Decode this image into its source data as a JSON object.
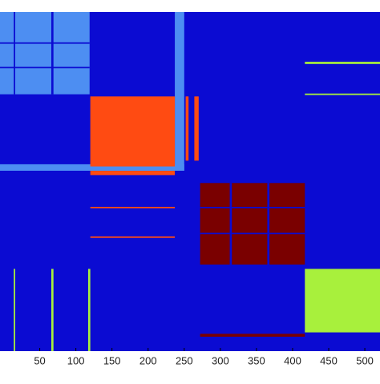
{
  "chart_data": {
    "type": "heatmap",
    "background": "#0b0bd2",
    "xlim": [
      -5,
      521
    ],
    "ylim": [
      0,
      470
    ],
    "xticks": [
      50,
      100,
      150,
      200,
      250,
      300,
      350,
      400,
      450,
      500
    ],
    "regions": [
      {
        "x": [
          -5,
          119
        ],
        "y": [
          0,
          114
        ],
        "color": "#4d8ef2"
      },
      {
        "x": [
          -5,
          250
        ],
        "y": [
          211,
          220
        ],
        "color": "#4d8ef2"
      },
      {
        "x": [
          237,
          250
        ],
        "y": [
          0,
          220
        ],
        "color": "#4d8ef2"
      },
      {
        "x": [
          120,
          237
        ],
        "y": [
          117,
          214
        ],
        "color": "#ff4b12"
      },
      {
        "x": [
          120,
          237
        ],
        "y": [
          220,
          226
        ],
        "color": "#ff4b12"
      },
      {
        "x": [
          252,
          256
        ],
        "y": [
          117,
          206
        ],
        "color": "#ff4b12"
      },
      {
        "x": [
          264,
          270
        ],
        "y": [
          117,
          206
        ],
        "color": "#ff4b12"
      },
      {
        "x": [
          120,
          237
        ],
        "y": [
          270,
          272
        ],
        "color": "#ff4b12"
      },
      {
        "x": [
          120,
          237
        ],
        "y": [
          311,
          313
        ],
        "color": "#ff4b12"
      },
      {
        "x": [
          272,
          417
        ],
        "y": [
          237,
          350
        ],
        "color": "#7a0000"
      },
      {
        "x": [
          272,
          417
        ],
        "y": [
          446,
          450
        ],
        "color": "#7a0000"
      },
      {
        "x": [
          313,
          316
        ],
        "y": [
          237,
          350
        ],
        "color": "#0b0bd2"
      },
      {
        "x": [
          365,
          368
        ],
        "y": [
          237,
          350
        ],
        "color": "#0b0bd2"
      },
      {
        "x": [
          272,
          417
        ],
        "y": [
          270,
          272
        ],
        "color": "#0b0bd2"
      },
      {
        "x": [
          272,
          417
        ],
        "y": [
          306,
          308
        ],
        "color": "#0b0bd2"
      },
      {
        "x": [
          417,
          521
        ],
        "y": [
          356,
          444
        ],
        "color": "#a8f03c"
      },
      {
        "x": [
          417,
          521
        ],
        "y": [
          69,
          72
        ],
        "color": "#a8f03c"
      },
      {
        "x": [
          417,
          521
        ],
        "y": [
          113,
          115
        ],
        "color": "#a8f03c"
      },
      {
        "x": [
          14,
          16
        ],
        "y": [
          356,
          470
        ],
        "color": "#a8f03c"
      },
      {
        "x": [
          66,
          69
        ],
        "y": [
          356,
          470
        ],
        "color": "#a8f03c"
      },
      {
        "x": [
          117,
          120
        ],
        "y": [
          356,
          470
        ],
        "color": "#a8f03c"
      },
      {
        "x": [
          14,
          16
        ],
        "y": [
          0,
          114
        ],
        "color": "#0b0bd2"
      },
      {
        "x": [
          66,
          69
        ],
        "y": [
          0,
          114
        ],
        "color": "#0b0bd2"
      },
      {
        "x": [
          -5,
          119
        ],
        "y": [
          42,
          44
        ],
        "color": "#0b0bd2"
      },
      {
        "x": [
          -5,
          119
        ],
        "y": [
          76,
          78
        ],
        "color": "#0b0bd2"
      }
    ]
  }
}
